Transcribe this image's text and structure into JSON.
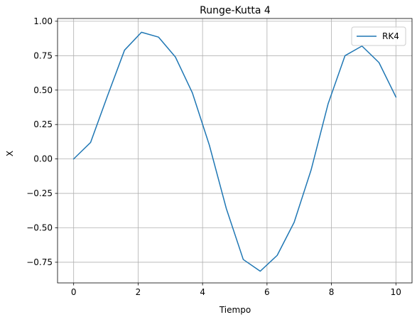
{
  "chart_data": {
    "type": "line",
    "title": "Runge-Kutta 4",
    "xlabel": "Tiempo",
    "ylabel": "X",
    "xlim": [
      -0.5,
      10.5
    ],
    "ylim": [
      -0.9,
      1.02
    ],
    "xticks": [
      0,
      2,
      4,
      6,
      8,
      10
    ],
    "xtick_labels": [
      "0",
      "2",
      "4",
      "6",
      "8",
      "10"
    ],
    "yticks": [
      -0.75,
      -0.5,
      -0.25,
      0.0,
      0.25,
      0.5,
      0.75,
      1.0
    ],
    "ytick_labels": [
      "−0.75",
      "−0.50",
      "−0.25",
      "0.00",
      "0.25",
      "0.50",
      "0.75",
      "1.00"
    ],
    "grid": true,
    "legend_position": "upper right",
    "series": [
      {
        "name": "RK4",
        "color": "#1f77b4",
        "x": [
          0.0,
          0.526,
          1.053,
          1.579,
          2.105,
          2.632,
          3.158,
          3.684,
          4.211,
          4.737,
          5.263,
          5.789,
          6.316,
          6.842,
          7.368,
          7.895,
          8.421,
          8.947,
          9.474,
          10.0
        ],
        "y": [
          0.0,
          0.12,
          0.46,
          0.79,
          0.92,
          0.885,
          0.74,
          0.48,
          0.1,
          -0.36,
          -0.73,
          -0.815,
          -0.7,
          -0.46,
          -0.08,
          0.4,
          0.75,
          0.82,
          0.7,
          0.45
        ]
      }
    ]
  }
}
